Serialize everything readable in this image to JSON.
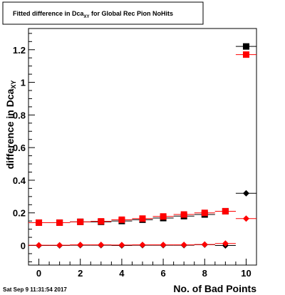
{
  "chart_data": {
    "type": "scatter",
    "title_main": "Fitted difference in Dca",
    "title_sub": "XY",
    "title_rest": " for Global Rec Pion NoHits",
    "xlabel": "No. of Bad Points",
    "ylabel_main": "difference in Dca",
    "ylabel_sub": "XY",
    "timestamp": "Sat Sep  9 11:31:54 2017",
    "xlim": [
      -0.5,
      10.5
    ],
    "ylim": [
      -0.12,
      1.33
    ],
    "x_ticks": [
      0,
      2,
      4,
      6,
      8,
      10
    ],
    "y_ticks": [
      0,
      0.2,
      0.4,
      0.6,
      0.8,
      1,
      1.2
    ],
    "x_tick_labels": [
      "0",
      "2",
      "4",
      "6",
      "8",
      "10"
    ],
    "y_tick_labels": [
      "0",
      "0.2",
      "0.4",
      "0.6",
      "0.8",
      "1",
      "1.2"
    ],
    "grid": false,
    "series": [
      {
        "marker": "square",
        "color": "#000000",
        "x": [
          0,
          1,
          2,
          3,
          4,
          5,
          6,
          7,
          8,
          9,
          10
        ],
        "y": [
          0.14,
          0.14,
          0.145,
          0.145,
          0.15,
          0.158,
          0.168,
          0.18,
          0.19,
          0.21,
          1.22
        ]
      },
      {
        "marker": "square",
        "color": "#ff0000",
        "x": [
          0,
          1,
          2,
          3,
          4,
          5,
          6,
          7,
          8,
          9,
          10
        ],
        "y": [
          0.14,
          0.14,
          0.145,
          0.148,
          0.158,
          0.165,
          0.178,
          0.19,
          0.2,
          0.21,
          1.17
        ]
      },
      {
        "marker": "diamond",
        "color": "#000000",
        "x": [
          0,
          1,
          2,
          3,
          4,
          5,
          6,
          7,
          8,
          9,
          10
        ],
        "y": [
          0.0,
          0.0,
          0.002,
          0.002,
          0.0,
          0.002,
          0.002,
          0.002,
          0.005,
          0.0,
          0.32
        ]
      },
      {
        "marker": "diamond",
        "color": "#ff0000",
        "x": [
          0,
          1,
          2,
          3,
          4,
          5,
          6,
          7,
          8,
          9,
          10
        ],
        "y": [
          0.002,
          0.002,
          0.004,
          0.004,
          0.003,
          0.004,
          0.004,
          0.004,
          0.006,
          0.012,
          0.165
        ]
      }
    ]
  }
}
